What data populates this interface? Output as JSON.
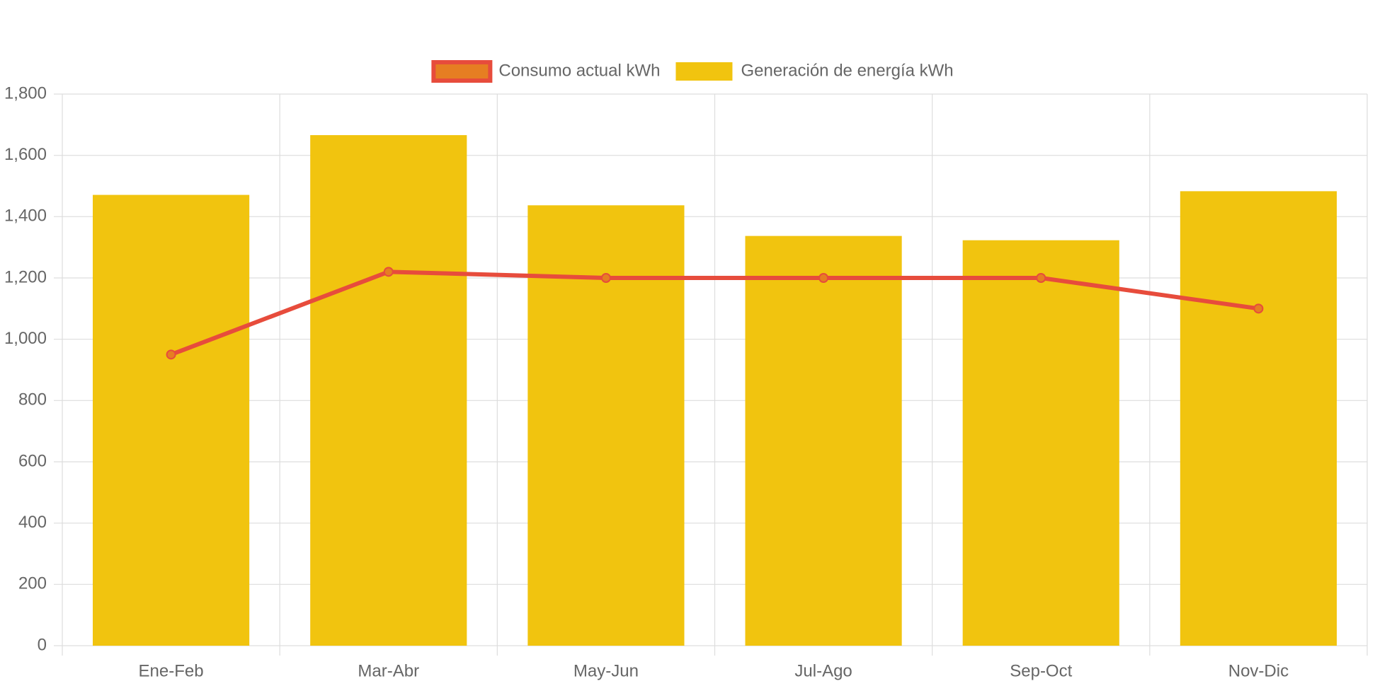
{
  "chart_data": {
    "type": "bar",
    "categories": [
      "Ene-Feb",
      "Mar-Abr",
      "May-Jun",
      "Jul-Ago",
      "Sep-Oct",
      "Nov-Dic"
    ],
    "series": [
      {
        "name": "Consumo actual kWh",
        "type": "line",
        "color": "#e74c3c",
        "point_color": "#e67e22",
        "values": [
          950,
          1220,
          1200,
          1200,
          1200,
          1100
        ]
      },
      {
        "name": "Generación de energía kWh",
        "type": "bar",
        "color": "#f1c40f",
        "values": [
          1471,
          1666,
          1437,
          1337,
          1323,
          1483
        ]
      }
    ],
    "ylim": [
      0,
      1800
    ],
    "yticks": [
      0,
      200,
      400,
      600,
      800,
      {
        "value": 1000,
        "label": "1,000"
      },
      {
        "value": 1200,
        "label": "1,200"
      },
      {
        "value": 1400,
        "label": "1,400"
      },
      {
        "value": 1600,
        "label": "1,600"
      },
      {
        "value": 1800,
        "label": "1,800"
      }
    ],
    "grid": true,
    "legend": "top"
  }
}
